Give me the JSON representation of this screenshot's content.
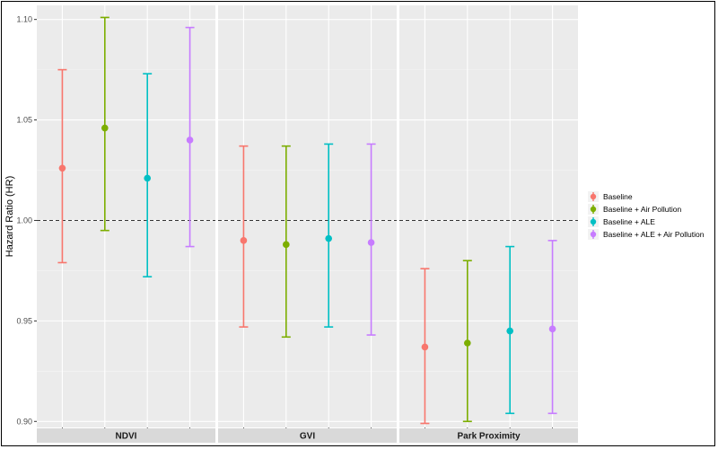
{
  "chart_data": {
    "type": "errorbar",
    "title": "",
    "xlabel": "",
    "ylabel": "Hazard Ratio (HR)",
    "ylim": [
      0.897,
      1.107
    ],
    "yticks": [
      0.9,
      0.95,
      1.0,
      1.05,
      1.1
    ],
    "ytick_labels": [
      "0.90",
      "0.95",
      "1.00",
      "1.05",
      "1.10"
    ],
    "reference_line": 1.0,
    "panels": [
      "NDVI",
      "GVI",
      "Park Proximity"
    ],
    "legend_position": "right",
    "series": [
      {
        "name": "Baseline",
        "color": "#F8766D",
        "estimates": [
          1.026,
          0.99,
          0.937
        ],
        "lower": [
          0.979,
          0.947,
          0.899
        ],
        "upper": [
          1.075,
          1.037,
          0.976
        ]
      },
      {
        "name": "Baseline + Air Pollution",
        "color": "#7CAE00",
        "estimates": [
          1.046,
          0.988,
          0.939
        ],
        "lower": [
          0.995,
          0.942,
          0.9
        ],
        "upper": [
          1.101,
          1.037,
          0.98
        ]
      },
      {
        "name": "Baseline + ALE",
        "color": "#00BFC4",
        "estimates": [
          1.021,
          0.991,
          0.945
        ],
        "lower": [
          0.972,
          0.947,
          0.904
        ],
        "upper": [
          1.073,
          1.038,
          0.987
        ]
      },
      {
        "name": "Baseline + ALE + Air Pollution",
        "color": "#C77CFF",
        "estimates": [
          1.04,
          0.989,
          0.946
        ],
        "lower": [
          0.987,
          0.943,
          0.904
        ],
        "upper": [
          1.096,
          1.038,
          0.99
        ]
      }
    ]
  }
}
